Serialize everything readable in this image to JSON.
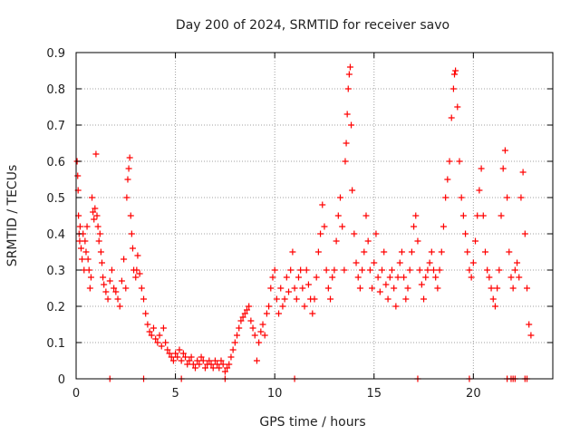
{
  "chart_data": {
    "type": "scatter",
    "title": "Day 200 of 2024, SRMTID for receiver savo",
    "xlabel": "GPS time / hours",
    "ylabel": "SRMTID / TECUs",
    "xlim": [
      0,
      24
    ],
    "ylim": [
      0,
      0.9
    ],
    "grid": true,
    "marker": "+",
    "colors": {
      "points": "#ff0000",
      "grid": "#a0a0a0",
      "axes": "#000000"
    },
    "x_ticks": [
      {
        "value": 0,
        "label": "0"
      },
      {
        "value": 5,
        "label": "5"
      },
      {
        "value": 10,
        "label": "10"
      },
      {
        "value": 15,
        "label": "15"
      },
      {
        "value": 20,
        "label": "20"
      }
    ],
    "y_ticks": [
      {
        "value": 0,
        "label": "0"
      },
      {
        "value": 0.1,
        "label": "0.1"
      },
      {
        "value": 0.2,
        "label": "0.2"
      },
      {
        "value": 0.3,
        "label": "0.3"
      },
      {
        "value": 0.4,
        "label": "0.4"
      },
      {
        "value": 0.5,
        "label": "0.5"
      },
      {
        "value": 0.6,
        "label": "0.6"
      },
      {
        "value": 0.7,
        "label": "0.7"
      },
      {
        "value": 0.8,
        "label": "0.8"
      },
      {
        "value": 0.9,
        "label": "0.9"
      }
    ],
    "series": [
      {
        "name": "SRMTID",
        "points": [
          [
            0.05,
            0.6
          ],
          [
            0.08,
            0.56
          ],
          [
            0.1,
            0.52
          ],
          [
            0.12,
            0.45
          ],
          [
            0.15,
            0.4
          ],
          [
            0.18,
            0.38
          ],
          [
            0.2,
            0.42
          ],
          [
            0.25,
            0.36
          ],
          [
            0.3,
            0.33
          ],
          [
            0.35,
            0.4
          ],
          [
            0.4,
            0.3
          ],
          [
            0.45,
            0.38
          ],
          [
            0.5,
            0.35
          ],
          [
            0.55,
            0.42
          ],
          [
            0.6,
            0.33
          ],
          [
            0.65,
            0.3
          ],
          [
            0.7,
            0.25
          ],
          [
            0.75,
            0.28
          ],
          [
            0.8,
            0.5
          ],
          [
            0.85,
            0.46
          ],
          [
            0.9,
            0.44
          ],
          [
            0.95,
            0.47
          ],
          [
            1.0,
            0.62
          ],
          [
            1.05,
            0.45
          ],
          [
            1.1,
            0.42
          ],
          [
            1.15,
            0.38
          ],
          [
            1.2,
            0.4
          ],
          [
            1.25,
            0.35
          ],
          [
            1.3,
            0.32
          ],
          [
            1.35,
            0.28
          ],
          [
            1.4,
            0.26
          ],
          [
            1.5,
            0.24
          ],
          [
            1.6,
            0.22
          ],
          [
            1.7,
            0.27
          ],
          [
            1.8,
            0.3
          ],
          [
            1.9,
            0.25
          ],
          [
            2.0,
            0.24
          ],
          [
            2.1,
            0.22
          ],
          [
            2.2,
            0.2
          ],
          [
            2.3,
            0.27
          ],
          [
            2.4,
            0.33
          ],
          [
            2.5,
            0.25
          ],
          [
            2.55,
            0.5
          ],
          [
            2.6,
            0.55
          ],
          [
            2.65,
            0.58
          ],
          [
            2.7,
            0.61
          ],
          [
            2.75,
            0.45
          ],
          [
            2.8,
            0.4
          ],
          [
            2.85,
            0.36
          ],
          [
            2.9,
            0.3
          ],
          [
            3.0,
            0.28
          ],
          [
            3.05,
            0.3
          ],
          [
            3.1,
            0.34
          ],
          [
            3.2,
            0.29
          ],
          [
            3.3,
            0.25
          ],
          [
            3.4,
            0.22
          ],
          [
            3.5,
            0.18
          ],
          [
            3.6,
            0.15
          ],
          [
            3.7,
            0.13
          ],
          [
            3.8,
            0.12
          ],
          [
            3.9,
            0.14
          ],
          [
            4.0,
            0.11
          ],
          [
            4.1,
            0.1
          ],
          [
            4.2,
            0.12
          ],
          [
            4.3,
            0.09
          ],
          [
            4.4,
            0.14
          ],
          [
            4.5,
            0.1
          ],
          [
            4.6,
            0.08
          ],
          [
            4.7,
            0.07
          ],
          [
            4.8,
            0.06
          ],
          [
            4.9,
            0.05
          ],
          [
            5.0,
            0.07
          ],
          [
            5.1,
            0.06
          ],
          [
            5.2,
            0.08
          ],
          [
            5.3,
            0.05
          ],
          [
            5.4,
            0.07
          ],
          [
            5.5,
            0.06
          ],
          [
            5.6,
            0.04
          ],
          [
            5.7,
            0.05
          ],
          [
            5.8,
            0.06
          ],
          [
            5.9,
            0.04
          ],
          [
            6.0,
            0.03
          ],
          [
            6.1,
            0.05
          ],
          [
            6.2,
            0.04
          ],
          [
            6.3,
            0.06
          ],
          [
            6.4,
            0.05
          ],
          [
            6.5,
            0.03
          ],
          [
            6.6,
            0.04
          ],
          [
            6.7,
            0.05
          ],
          [
            6.8,
            0.04
          ],
          [
            6.9,
            0.03
          ],
          [
            7.0,
            0.05
          ],
          [
            7.1,
            0.04
          ],
          [
            7.2,
            0.03
          ],
          [
            7.3,
            0.05
          ],
          [
            7.4,
            0.04
          ],
          [
            7.5,
            0.02
          ],
          [
            7.6,
            0.03
          ],
          [
            7.7,
            0.04
          ],
          [
            7.8,
            0.06
          ],
          [
            7.9,
            0.08
          ],
          [
            8.0,
            0.1
          ],
          [
            8.1,
            0.12
          ],
          [
            8.2,
            0.14
          ],
          [
            8.3,
            0.16
          ],
          [
            8.4,
            0.17
          ],
          [
            8.5,
            0.18
          ],
          [
            8.6,
            0.19
          ],
          [
            8.7,
            0.2
          ],
          [
            8.8,
            0.16
          ],
          [
            8.9,
            0.14
          ],
          [
            9.0,
            0.12
          ],
          [
            9.1,
            0.05
          ],
          [
            9.2,
            0.1
          ],
          [
            9.3,
            0.13
          ],
          [
            9.4,
            0.15
          ],
          [
            9.5,
            0.12
          ],
          [
            9.6,
            0.18
          ],
          [
            9.7,
            0.2
          ],
          [
            9.8,
            0.25
          ],
          [
            9.9,
            0.28
          ],
          [
            10.0,
            0.3
          ],
          [
            10.1,
            0.22
          ],
          [
            10.2,
            0.18
          ],
          [
            10.3,
            0.25
          ],
          [
            10.4,
            0.2
          ],
          [
            10.5,
            0.22
          ],
          [
            10.6,
            0.28
          ],
          [
            10.7,
            0.24
          ],
          [
            10.8,
            0.3
          ],
          [
            10.9,
            0.35
          ],
          [
            11.0,
            0.25
          ],
          [
            11.1,
            0.22
          ],
          [
            11.2,
            0.28
          ],
          [
            11.3,
            0.3
          ],
          [
            11.4,
            0.25
          ],
          [
            11.5,
            0.2
          ],
          [
            11.6,
            0.3
          ],
          [
            11.7,
            0.26
          ],
          [
            11.8,
            0.22
          ],
          [
            11.9,
            0.18
          ],
          [
            12.0,
            0.22
          ],
          [
            12.1,
            0.28
          ],
          [
            12.2,
            0.35
          ],
          [
            12.3,
            0.4
          ],
          [
            12.4,
            0.48
          ],
          [
            12.5,
            0.42
          ],
          [
            12.6,
            0.3
          ],
          [
            12.7,
            0.25
          ],
          [
            12.8,
            0.22
          ],
          [
            12.9,
            0.28
          ],
          [
            13.0,
            0.3
          ],
          [
            13.1,
            0.38
          ],
          [
            13.2,
            0.45
          ],
          [
            13.3,
            0.5
          ],
          [
            13.4,
            0.42
          ],
          [
            13.5,
            0.3
          ],
          [
            13.55,
            0.6
          ],
          [
            13.6,
            0.65
          ],
          [
            13.65,
            0.73
          ],
          [
            13.7,
            0.8
          ],
          [
            13.75,
            0.84
          ],
          [
            13.8,
            0.86
          ],
          [
            13.85,
            0.7
          ],
          [
            13.9,
            0.52
          ],
          [
            14.0,
            0.4
          ],
          [
            14.1,
            0.32
          ],
          [
            14.2,
            0.28
          ],
          [
            14.3,
            0.25
          ],
          [
            14.4,
            0.3
          ],
          [
            14.5,
            0.35
          ],
          [
            14.6,
            0.45
          ],
          [
            14.7,
            0.38
          ],
          [
            14.8,
            0.3
          ],
          [
            14.9,
            0.25
          ],
          [
            15.0,
            0.32
          ],
          [
            15.1,
            0.4
          ],
          [
            15.2,
            0.28
          ],
          [
            15.3,
            0.24
          ],
          [
            15.4,
            0.3
          ],
          [
            15.5,
            0.35
          ],
          [
            15.6,
            0.26
          ],
          [
            15.7,
            0.22
          ],
          [
            15.8,
            0.28
          ],
          [
            15.9,
            0.3
          ],
          [
            16.0,
            0.25
          ],
          [
            16.1,
            0.2
          ],
          [
            16.2,
            0.28
          ],
          [
            16.3,
            0.32
          ],
          [
            16.4,
            0.35
          ],
          [
            16.5,
            0.28
          ],
          [
            16.6,
            0.22
          ],
          [
            16.7,
            0.25
          ],
          [
            16.8,
            0.3
          ],
          [
            16.9,
            0.35
          ],
          [
            17.0,
            0.42
          ],
          [
            17.1,
            0.45
          ],
          [
            17.2,
            0.38
          ],
          [
            17.3,
            0.3
          ],
          [
            17.4,
            0.26
          ],
          [
            17.5,
            0.22
          ],
          [
            17.6,
            0.28
          ],
          [
            17.7,
            0.3
          ],
          [
            17.8,
            0.32
          ],
          [
            17.9,
            0.35
          ],
          [
            18.0,
            0.3
          ],
          [
            18.1,
            0.28
          ],
          [
            18.2,
            0.25
          ],
          [
            18.3,
            0.3
          ],
          [
            18.4,
            0.35
          ],
          [
            18.5,
            0.42
          ],
          [
            18.6,
            0.5
          ],
          [
            18.7,
            0.55
          ],
          [
            18.8,
            0.6
          ],
          [
            18.9,
            0.72
          ],
          [
            19.0,
            0.8
          ],
          [
            19.05,
            0.84
          ],
          [
            19.1,
            0.85
          ],
          [
            19.2,
            0.75
          ],
          [
            19.3,
            0.6
          ],
          [
            19.4,
            0.5
          ],
          [
            19.5,
            0.45
          ],
          [
            19.6,
            0.4
          ],
          [
            19.7,
            0.35
          ],
          [
            19.8,
            0.3
          ],
          [
            19.9,
            0.28
          ],
          [
            20.0,
            0.32
          ],
          [
            20.1,
            0.38
          ],
          [
            20.2,
            0.45
          ],
          [
            20.3,
            0.52
          ],
          [
            20.4,
            0.58
          ],
          [
            20.5,
            0.45
          ],
          [
            20.6,
            0.35
          ],
          [
            20.7,
            0.3
          ],
          [
            20.8,
            0.28
          ],
          [
            20.9,
            0.25
          ],
          [
            21.0,
            0.22
          ],
          [
            21.1,
            0.2
          ],
          [
            21.2,
            0.25
          ],
          [
            21.3,
            0.3
          ],
          [
            21.4,
            0.45
          ],
          [
            21.5,
            0.58
          ],
          [
            21.6,
            0.63
          ],
          [
            21.7,
            0.5
          ],
          [
            21.8,
            0.35
          ],
          [
            21.9,
            0.28
          ],
          [
            22.0,
            0.25
          ],
          [
            22.1,
            0.3
          ],
          [
            22.2,
            0.32
          ],
          [
            22.3,
            0.28
          ],
          [
            22.4,
            0.5
          ],
          [
            22.5,
            0.57
          ],
          [
            22.6,
            0.4
          ],
          [
            22.7,
            0.25
          ],
          [
            22.8,
            0.15
          ],
          [
            22.9,
            0.12
          ],
          [
            1.7,
            0.0
          ],
          [
            3.4,
            0.0
          ],
          [
            5.3,
            0.0
          ],
          [
            7.5,
            0.0
          ],
          [
            11.0,
            0.0
          ],
          [
            17.2,
            0.0
          ],
          [
            19.8,
            0.0
          ],
          [
            21.7,
            0.0
          ],
          [
            21.9,
            0.0
          ],
          [
            22.0,
            0.0
          ],
          [
            22.1,
            0.0
          ],
          [
            22.6,
            0.0
          ],
          [
            22.7,
            0.0
          ]
        ]
      }
    ]
  }
}
